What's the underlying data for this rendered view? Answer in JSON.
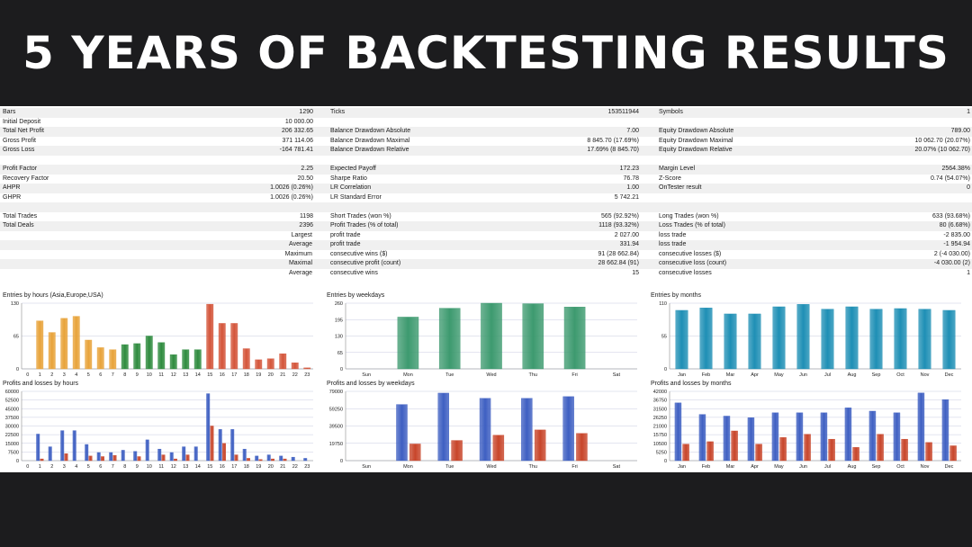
{
  "banner": {
    "title": "5 YEARS OF BACKTESTING RESULTS"
  },
  "stats": {
    "rows": [
      [
        "Bars",
        "1290",
        "Ticks",
        "153511944",
        "Symbols",
        "1"
      ],
      [
        "Initial Deposit",
        "10 000.00",
        "",
        "",
        "",
        ""
      ],
      [
        "Total Net Profit",
        "206 332.65",
        "Balance Drawdown Absolute",
        "7.00",
        "Equity Drawdown Absolute",
        "789.00"
      ],
      [
        "Gross Profit",
        "371 114.06",
        "Balance Drawdown Maximal",
        "8 845.70 (17.69%)",
        "Equity Drawdown Maximal",
        "10 062.70 (20.07%)"
      ],
      [
        "Gross Loss",
        "-164 781.41",
        "Balance Drawdown Relative",
        "17.69% (8 845.70)",
        "Equity Drawdown Relative",
        "20.07% (10 062.70)"
      ],
      [
        "",
        "",
        "",
        "",
        "",
        ""
      ],
      [
        "Profit Factor",
        "2.25",
        "Expected Payoff",
        "172.23",
        "Margin Level",
        "2564.38%"
      ],
      [
        "Recovery Factor",
        "20.50",
        "Sharpe Ratio",
        "76.78",
        "Z-Score",
        "0.74 (54.07%)"
      ],
      [
        "AHPR",
        "1.0026 (0.26%)",
        "LR Correlation",
        "1.00",
        "OnTester result",
        "0"
      ],
      [
        "GHPR",
        "1.0026 (0.26%)",
        "LR Standard Error",
        "5 742.21",
        "",
        ""
      ],
      [
        "",
        "",
        "",
        "",
        "",
        ""
      ],
      [
        "Total Trades",
        "1198",
        "Short Trades (won %)",
        "565 (92.92%)",
        "Long Trades (won %)",
        "633 (93.68%)"
      ],
      [
        "Total Deals",
        "2396",
        "Profit Trades (% of total)",
        "1118 (93.32%)",
        "Loss Trades (% of total)",
        "80 (6.68%)"
      ],
      [
        "",
        "Largest",
        "profit trade",
        "2 027.00",
        "loss trade",
        "-2 835.00"
      ],
      [
        "",
        "Average",
        "profit trade",
        "331.94",
        "loss trade",
        "-1 954.94"
      ],
      [
        "",
        "Maximum",
        "consecutive wins ($)",
        "91 (28 662.84)",
        "consecutive losses ($)",
        "2 (-4 030.00)"
      ],
      [
        "",
        "Maximal",
        "consecutive profit (count)",
        "28 662.84 (91)",
        "consecutive loss (count)",
        "-4 030.00 (2)"
      ],
      [
        "",
        "Average",
        "consecutive wins",
        "15",
        "consecutive losses",
        "1"
      ]
    ]
  },
  "colors": {
    "morning": "#e8a33a",
    "midday": "#2e8b3e",
    "evening": "#d4553a",
    "weekday_bar": "#3d9a6f",
    "month_bar": "#1e8fb5",
    "profit": "#3e5fc2",
    "loss": "#c8452a",
    "grid": "#c8cbe0"
  },
  "chart_data": [
    {
      "type": "bar",
      "title": "Entries by hours (Asia,Europe,USA)",
      "categories": [
        "0",
        "1",
        "2",
        "3",
        "4",
        "5",
        "6",
        "7",
        "8",
        "9",
        "10",
        "11",
        "12",
        "13",
        "14",
        "15",
        "16",
        "17",
        "18",
        "19",
        "20",
        "21",
        "22",
        "23"
      ],
      "values": [
        0,
        95,
        72,
        100,
        104,
        57,
        42,
        38,
        48,
        50,
        65,
        52,
        28,
        38,
        38,
        128,
        90,
        90,
        40,
        18,
        20,
        30,
        12,
        2
      ],
      "ylim": [
        0,
        130
      ],
      "yticks": [
        "130",
        "65",
        "0"
      ]
    },
    {
      "type": "bar",
      "title": "Entries by weekdays",
      "categories": [
        "Sun",
        "Mon",
        "Tue",
        "Wed",
        "Thu",
        "Fri",
        "Sat"
      ],
      "values": [
        0,
        205,
        240,
        260,
        258,
        245,
        0
      ],
      "ylim": [
        0,
        260
      ],
      "yticks": [
        "260",
        "195",
        "130",
        "65",
        "0"
      ]
    },
    {
      "type": "bar",
      "title": "Entries by months",
      "categories": [
        "Jan",
        "Feb",
        "Mar",
        "Apr",
        "May",
        "Jun",
        "Jul",
        "Aug",
        "Sep",
        "Oct",
        "Nov",
        "Dec"
      ],
      "values": [
        98,
        102,
        92,
        92,
        104,
        108,
        100,
        104,
        100,
        101,
        100,
        98
      ],
      "ylim": [
        0,
        110
      ],
      "yticks": [
        "110",
        "55",
        "0"
      ]
    },
    {
      "type": "bar",
      "title": "Profits and losses by hours",
      "categories": [
        "0",
        "1",
        "2",
        "3",
        "4",
        "5",
        "6",
        "7",
        "8",
        "9",
        "10",
        "11",
        "12",
        "13",
        "14",
        "15",
        "16",
        "17",
        "18",
        "19",
        "20",
        "21",
        "22",
        "23"
      ],
      "series": [
        {
          "name": "Profits",
          "values": [
            0,
            23000,
            12000,
            26000,
            26000,
            14000,
            7000,
            7000,
            9000,
            8000,
            18000,
            10000,
            7000,
            12000,
            12000,
            58000,
            27000,
            27000,
            10000,
            4000,
            5000,
            4000,
            3000,
            2000
          ]
        },
        {
          "name": "Losses",
          "values": [
            0,
            1500,
            0,
            6000,
            0,
            4000,
            3500,
            4500,
            0,
            3500,
            0,
            5000,
            1500,
            5000,
            0,
            30000,
            15000,
            5000,
            2000,
            1000,
            1500,
            1500,
            0,
            0
          ]
        }
      ],
      "ylim": [
        0,
        60000
      ],
      "yticks": [
        "60000",
        "52500",
        "45000",
        "37500",
        "30000",
        "22500",
        "15000",
        "7500",
        "0"
      ]
    },
    {
      "type": "bar",
      "title": "Profits and losses by weekdays",
      "categories": [
        "Sun",
        "Mon",
        "Tue",
        "Wed",
        "Thu",
        "Fri",
        "Sat"
      ],
      "series": [
        {
          "name": "Profits",
          "values": [
            0,
            64000,
            77000,
            71000,
            71000,
            73000,
            0
          ]
        },
        {
          "name": "Losses",
          "values": [
            0,
            19000,
            23000,
            29000,
            35000,
            31000,
            0
          ]
        }
      ],
      "ylim": [
        0,
        79000
      ],
      "yticks": [
        "79000",
        "59250",
        "39500",
        "19750",
        "0"
      ]
    },
    {
      "type": "bar",
      "title": "Profits and losses by months",
      "categories": [
        "Jan",
        "Feb",
        "Mar",
        "Apr",
        "May",
        "Jun",
        "Jul",
        "Aug",
        "Sep",
        "Oct",
        "Nov",
        "Dec"
      ],
      "series": [
        {
          "name": "Profits",
          "values": [
            35000,
            28000,
            27000,
            26000,
            29000,
            29000,
            29000,
            32000,
            30000,
            29000,
            41000,
            37000
          ]
        },
        {
          "name": "Losses",
          "values": [
            10000,
            11500,
            18000,
            10000,
            14000,
            16000,
            13000,
            8000,
            16000,
            13000,
            11000,
            9000
          ]
        }
      ],
      "ylim": [
        0,
        42000
      ],
      "yticks": [
        "42000",
        "36750",
        "31500",
        "26250",
        "21000",
        "15750",
        "10500",
        "5250",
        "0"
      ]
    }
  ]
}
